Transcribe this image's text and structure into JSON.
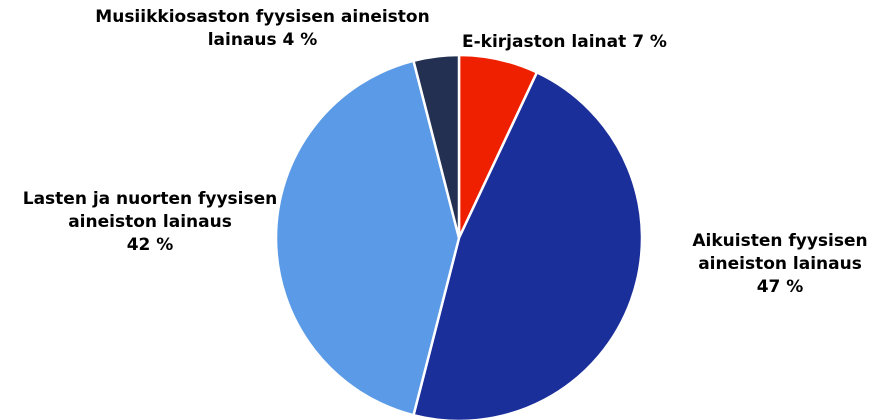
{
  "chart_data": {
    "type": "pie",
    "categories": [
      "E-kirjaston lainat",
      "Aikuisten fyysisen aineiston lainaus",
      "Lasten ja nuorten fyysisen aineiston lainaus",
      "Musiikkiosaston fyysisen aineiston lainaus"
    ],
    "values": [
      7,
      47,
      42,
      4
    ],
    "value_labels": [
      "7 %",
      "47 %",
      "42 %",
      "4 %"
    ],
    "colors": [
      "#ee2000",
      "#1b2f9b",
      "#5b9ae6",
      "#243052"
    ]
  }
}
